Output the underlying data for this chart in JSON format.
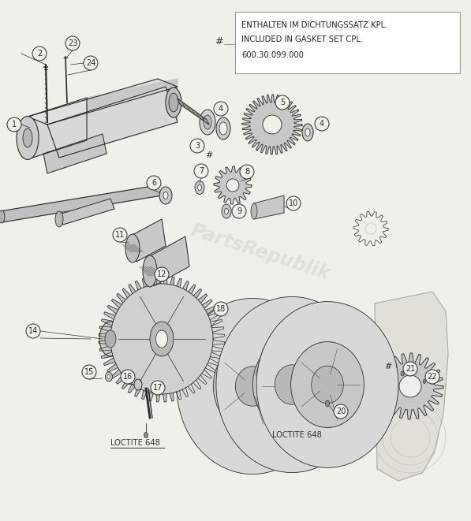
{
  "bg_color": "#f0f0ea",
  "box_text_line1": "ENTHALTEN IM DICHTUNGSSATZ KPL.",
  "box_text_line2": "INCLUDED IN GASKET SET CPL.",
  "box_text_line3": "600.30.099.000",
  "watermark": "PartsRepublik",
  "loctite_label1": "LOCTITE 648",
  "loctite_label2": "LOCTITE 648",
  "line_color": "#2a2a2a",
  "circle_fill": "#f0f0ea",
  "light_gray": "#c8c8c8",
  "mid_gray": "#b0b0b0",
  "dark_gray": "#909090",
  "white": "#ffffff"
}
